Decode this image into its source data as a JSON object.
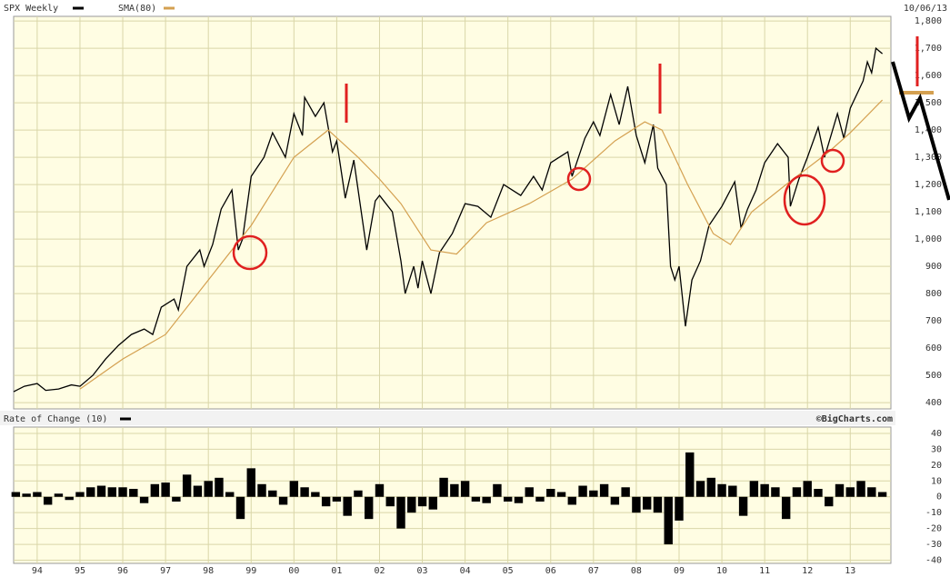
{
  "chart_data": [
    {
      "type": "line",
      "date": "10/06/13",
      "grid": true,
      "x": [
        1993.45,
        1993.7,
        1994.0,
        1994.2,
        1994.5,
        1994.8,
        1995.0,
        1995.3,
        1995.6,
        1995.9,
        1996.2,
        1996.5,
        1996.7,
        1996.9,
        1997.2,
        1997.3,
        1997.5,
        1997.8,
        1997.9,
        1998.1,
        1998.3,
        1998.55,
        1998.7,
        1998.8,
        1999.0,
        1999.3,
        1999.5,
        1999.8,
        2000.0,
        2000.2,
        2000.25,
        2000.5,
        2000.7,
        2000.9,
        2001.0,
        2001.2,
        2001.4,
        2001.7,
        2001.9,
        2002.0,
        2002.3,
        2002.5,
        2002.6,
        2002.8,
        2002.9,
        2003.0,
        2003.2,
        2003.4,
        2003.7,
        2004.0,
        2004.3,
        2004.6,
        2004.9,
        2005.3,
        2005.6,
        2005.8,
        2006.0,
        2006.4,
        2006.5,
        2006.8,
        2007.0,
        2007.15,
        2007.4,
        2007.6,
        2007.8,
        2008.0,
        2008.2,
        2008.4,
        2008.5,
        2008.7,
        2008.8,
        2008.9,
        2009.0,
        2009.15,
        2009.3,
        2009.5,
        2009.7,
        2010.0,
        2010.3,
        2010.45,
        2010.6,
        2010.8,
        2011.0,
        2011.3,
        2011.55,
        2011.6,
        2011.8,
        2012.0,
        2012.25,
        2012.4,
        2012.7,
        2012.85,
        2013.0,
        2013.3,
        2013.4,
        2013.5,
        2013.6,
        2013.75
      ],
      "series": [
        {
          "name": "SPX Weekly",
          "color": "#000000",
          "values": [
            440,
            460,
            470,
            445,
            450,
            465,
            460,
            500,
            560,
            610,
            650,
            670,
            650,
            750,
            780,
            740,
            900,
            960,
            900,
            980,
            1110,
            1180,
            960,
            1000,
            1230,
            1300,
            1390,
            1300,
            1460,
            1380,
            1520,
            1450,
            1500,
            1320,
            1360,
            1150,
            1290,
            960,
            1140,
            1160,
            1100,
            920,
            800,
            900,
            820,
            920,
            800,
            950,
            1020,
            1130,
            1120,
            1080,
            1200,
            1160,
            1230,
            1180,
            1280,
            1320,
            1230,
            1370,
            1430,
            1380,
            1530,
            1420,
            1560,
            1380,
            1280,
            1420,
            1260,
            1200,
            900,
            850,
            900,
            680,
            850,
            920,
            1050,
            1120,
            1210,
            1040,
            1110,
            1180,
            1280,
            1350,
            1300,
            1120,
            1220,
            1300,
            1410,
            1300,
            1460,
            1370,
            1480,
            1580,
            1650,
            1610,
            1700,
            1680
          ]
        },
        {
          "name": "SMA(80)",
          "color": "#d4a050",
          "x": [
            1995.0,
            1996.0,
            1997.0,
            1998.0,
            1999.0,
            2000.0,
            2000.8,
            2001.5,
            2002.0,
            2002.5,
            2003.2,
            2003.8,
            2004.5,
            2005.5,
            2006.5,
            2007.5,
            2008.2,
            2008.6,
            2009.2,
            2009.8,
            2010.2,
            2010.7,
            2011.5,
            2012.0,
            2012.5,
            2013.0,
            2013.75
          ],
          "values": [
            450,
            560,
            650,
            850,
            1050,
            1300,
            1400,
            1300,
            1220,
            1130,
            960,
            945,
            1060,
            1130,
            1220,
            1360,
            1430,
            1400,
            1200,
            1020,
            980,
            1100,
            1200,
            1260,
            1320,
            1390,
            1510
          ]
        }
      ],
      "xlim": [
        1993.45,
        2013.95
      ],
      "ylim": [
        377,
        1817
      ],
      "yticks": [
        {
          "value": 1800,
          "label": "1,800"
        },
        {
          "value": 1700,
          "label": "1,700"
        },
        {
          "value": 1600,
          "label": "1,600"
        },
        {
          "value": 1500,
          "label": "1,500"
        },
        {
          "value": 1400,
          "label": "1,400"
        },
        {
          "value": 1300,
          "label": "1,300"
        },
        {
          "value": 1200,
          "label": "1,200"
        },
        {
          "value": 1100,
          "label": "1,100"
        },
        {
          "value": 1000,
          "label": "1,000"
        },
        900,
        800,
        700,
        600,
        500,
        400
      ],
      "xticks": [
        {
          "value": 1994,
          "label": "94"
        },
        {
          "value": 1995,
          "label": "95"
        },
        {
          "value": 1996,
          "label": "96"
        },
        {
          "value": 1997,
          "label": "97"
        },
        {
          "value": 1998,
          "label": "98"
        },
        {
          "value": 1999,
          "label": "99"
        },
        {
          "value": 2000,
          "label": "00"
        },
        {
          "value": 2001,
          "label": "01"
        },
        {
          "value": 2002,
          "label": "02"
        },
        {
          "value": 2003,
          "label": "03"
        },
        {
          "value": 2004,
          "label": "04"
        },
        {
          "value": 2005,
          "label": "05"
        },
        {
          "value": 2006,
          "label": "06"
        },
        {
          "value": 2007,
          "label": "07"
        },
        {
          "value": 2008,
          "label": "08"
        },
        {
          "value": 2009,
          "label": "09"
        },
        {
          "value": 2010,
          "label": "10"
        },
        {
          "value": 2011,
          "label": "11"
        },
        {
          "value": 2012,
          "label": "12"
        },
        {
          "value": 2013,
          "label": "13"
        }
      ]
    },
    {
      "type": "bar",
      "title": "Rate of Change (10)",
      "source": "©BigCharts.com",
      "color": "#000000",
      "grid": true,
      "x": [
        1993.5,
        1993.75,
        1994.0,
        1994.25,
        1994.5,
        1994.75,
        1995.0,
        1995.25,
        1995.5,
        1995.75,
        1996.0,
        1996.25,
        1996.5,
        1996.75,
        1997.0,
        1997.25,
        1997.5,
        1997.75,
        1998.0,
        1998.25,
        1998.5,
        1998.75,
        1999.0,
        1999.25,
        1999.5,
        1999.75,
        2000.0,
        2000.25,
        2000.5,
        2000.75,
        2001.0,
        2001.25,
        2001.5,
        2001.75,
        2002.0,
        2002.25,
        2002.5,
        2002.75,
        2003.0,
        2003.25,
        2003.5,
        2003.75,
        2004.0,
        2004.25,
        2004.5,
        2004.75,
        2005.0,
        2005.25,
        2005.5,
        2005.75,
        2006.0,
        2006.25,
        2006.5,
        2006.75,
        2007.0,
        2007.25,
        2007.5,
        2007.75,
        2008.0,
        2008.25,
        2008.5,
        2008.75,
        2009.0,
        2009.25,
        2009.5,
        2009.75,
        2010.0,
        2010.25,
        2010.5,
        2010.75,
        2011.0,
        2011.25,
        2011.5,
        2011.75,
        2012.0,
        2012.25,
        2012.5,
        2012.75,
        2013.0,
        2013.25,
        2013.5,
        2013.75
      ],
      "values": [
        3,
        2,
        3,
        -5,
        2,
        -2,
        3,
        6,
        7,
        6,
        6,
        5,
        -4,
        8,
        9,
        -3,
        14,
        7,
        10,
        12,
        3,
        -14,
        18,
        8,
        4,
        -5,
        10,
        6,
        3,
        -6,
        -3,
        -12,
        4,
        -14,
        8,
        -6,
        -20,
        -10,
        -6,
        -8,
        12,
        8,
        10,
        -3,
        -4,
        8,
        -3,
        -4,
        6,
        -3,
        5,
        3,
        -5,
        7,
        4,
        8,
        -5,
        6,
        -10,
        -8,
        -10,
        -30,
        -15,
        28,
        10,
        12,
        8,
        7,
        -12,
        10,
        8,
        6,
        -14,
        6,
        10,
        5,
        -6,
        8,
        6,
        10,
        6,
        3
      ],
      "xlim": [
        1993.45,
        2013.95
      ],
      "ylim": [
        -42,
        44
      ],
      "yticks": [
        40,
        30,
        20,
        10,
        0,
        -10,
        -20,
        -30,
        -40
      ]
    }
  ]
}
